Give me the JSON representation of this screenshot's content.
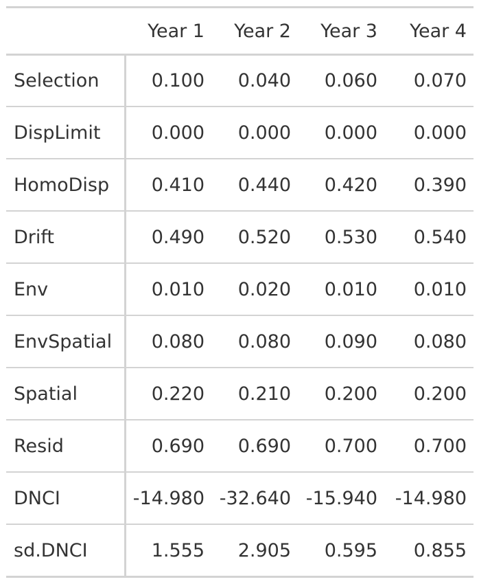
{
  "table": {
    "columns": [
      "Year 1",
      "Year 2",
      "Year 3",
      "Year 4"
    ],
    "rows": [
      {
        "label": "Selection",
        "values": [
          "0.100",
          "0.040",
          "0.060",
          "0.070"
        ]
      },
      {
        "label": "DispLimit",
        "values": [
          "0.000",
          "0.000",
          "0.000",
          "0.000"
        ]
      },
      {
        "label": "HomoDisp",
        "values": [
          "0.410",
          "0.440",
          "0.420",
          "0.390"
        ]
      },
      {
        "label": "Drift",
        "values": [
          "0.490",
          "0.520",
          "0.530",
          "0.540"
        ]
      },
      {
        "label": "Env",
        "values": [
          "0.010",
          "0.020",
          "0.010",
          "0.010"
        ]
      },
      {
        "label": "EnvSpatial",
        "values": [
          "0.080",
          "0.080",
          "0.090",
          "0.080"
        ]
      },
      {
        "label": "Spatial",
        "values": [
          "0.220",
          "0.210",
          "0.200",
          "0.200"
        ]
      },
      {
        "label": "Resid",
        "values": [
          "0.690",
          "0.690",
          "0.700",
          "0.700"
        ]
      },
      {
        "label": "DNCI",
        "values": [
          "-14.980",
          "-32.640",
          "-15.940",
          "-14.980"
        ]
      },
      {
        "label": "sd.DNCI",
        "values": [
          "1.555",
          "2.905",
          "0.595",
          "0.855"
        ]
      }
    ]
  }
}
